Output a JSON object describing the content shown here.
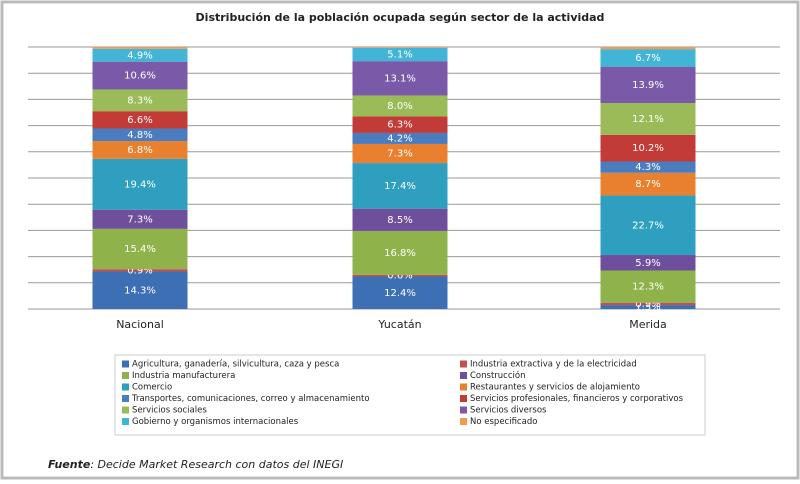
{
  "chart_data": {
    "type": "stacked_bar",
    "title": "Distribución de la población ocupada según sector de la actividad",
    "categories": [
      "Nacional",
      "Yucatán",
      "Merida"
    ],
    "ylim": [
      0,
      100
    ],
    "yticks": [
      0,
      10,
      20,
      30,
      40,
      50,
      60,
      70,
      80,
      90,
      100
    ],
    "show_ytick_labels": false,
    "grid": true,
    "series": [
      {
        "name": "Agricultura, ganadería, silvicultura, caza y pesca",
        "color": "#3d6fb5",
        "values": [
          14.3,
          12.4,
          1.5
        ],
        "value_labels": [
          "14.3%",
          "12.4%",
          "1.5%"
        ]
      },
      {
        "name": "Industria extractiva y de la electricidad",
        "color": "#c0504d",
        "values": [
          0.9,
          0.6,
          0.9
        ],
        "value_labels": [
          "0.9%",
          "0.6%",
          "0.9%"
        ]
      },
      {
        "name": "Industria manufacturera",
        "color": "#8fb34a",
        "values": [
          15.4,
          16.8,
          12.3
        ],
        "value_labels": [
          "15.4%",
          "16.8%",
          "12.3%"
        ]
      },
      {
        "name": "Construcción",
        "color": "#6e4f9c",
        "values": [
          7.3,
          8.5,
          5.9
        ],
        "value_labels": [
          "7.3%",
          "8.5%",
          "5.9%"
        ]
      },
      {
        "name": "Comercio",
        "color": "#2f9fbf",
        "values": [
          19.4,
          17.4,
          22.7
        ],
        "value_labels": [
          "19.4%",
          "17.4%",
          "22.7%"
        ]
      },
      {
        "name": "Restaurantes y servicios de alojamiento",
        "color": "#e8802f",
        "values": [
          6.8,
          7.3,
          8.7
        ],
        "value_labels": [
          "6.8%",
          "7.3%",
          "8.7%"
        ]
      },
      {
        "name": "Transportes, comunicaciones, correo y almacenamiento",
        "color": "#4a7cc0",
        "values": [
          4.8,
          4.2,
          4.3
        ],
        "value_labels": [
          "4.8%",
          "4.2%",
          "4.3%"
        ]
      },
      {
        "name": "Servicios profesionales, financieros y corporativos",
        "color": "#c23b36",
        "values": [
          6.6,
          6.3,
          10.2
        ],
        "value_labels": [
          "6.6%",
          "6.3%",
          "10.2%"
        ]
      },
      {
        "name": "Servicios sociales",
        "color": "#9bbb59",
        "values": [
          8.3,
          8.0,
          12.1
        ],
        "value_labels": [
          "8.3%",
          "8.0%",
          "12.1%"
        ]
      },
      {
        "name": "Servicios diversos",
        "color": "#7a5aa8",
        "values": [
          10.6,
          13.1,
          13.9
        ],
        "value_labels": [
          "10.6%",
          "13.1%",
          "13.9%"
        ]
      },
      {
        "name": "Gobierno y organismos internacionales",
        "color": "#42b4d6",
        "values": [
          4.9,
          5.1,
          6.7
        ],
        "value_labels": [
          "4.9%",
          "5.1%",
          "6.7%"
        ]
      },
      {
        "name": "No especificado",
        "color": "#f39a4c",
        "values": [
          0.7,
          0.3,
          0.8
        ],
        "value_labels": [
          null,
          null,
          null
        ]
      }
    ]
  },
  "footer": {
    "label": "Fuente",
    "text": ": Decide Market Research con datos del INEGI"
  }
}
